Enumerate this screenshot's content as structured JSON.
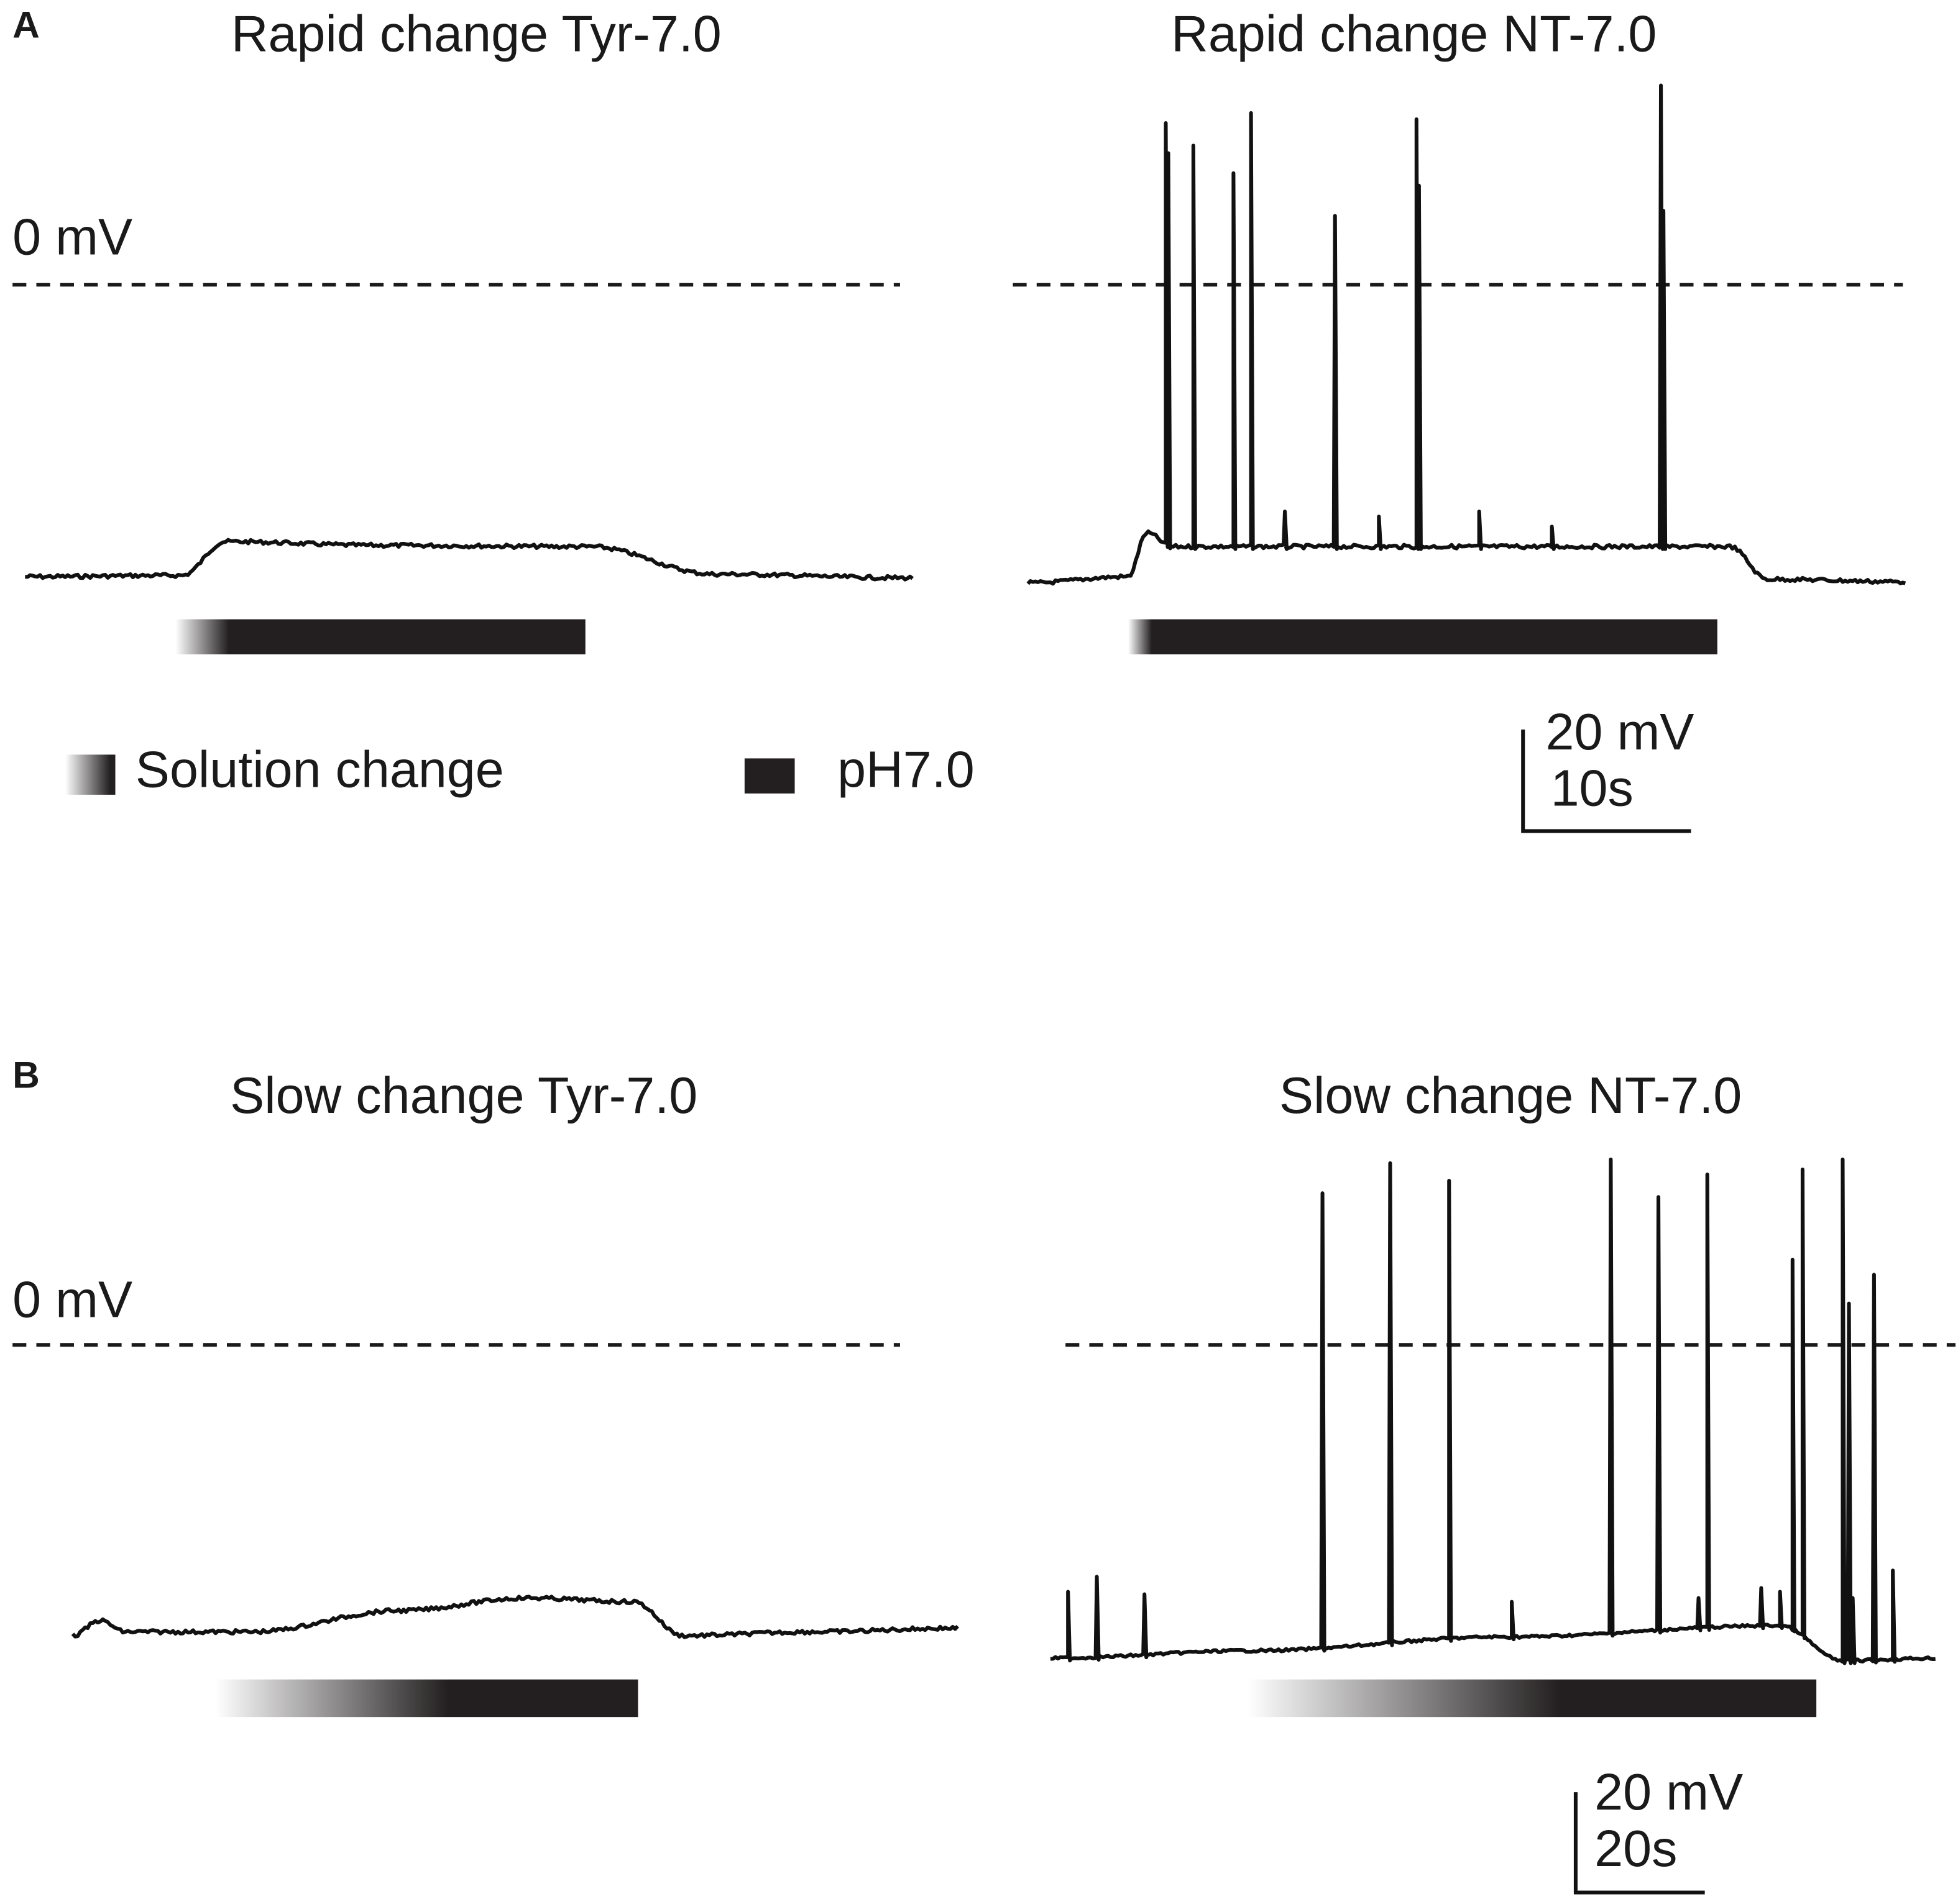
{
  "panels": [
    {
      "label": "A",
      "zero_label": "0 mV",
      "left_title": "Rapid change Tyr-7.0",
      "right_title": "Rapid change NT-7.0",
      "scale_voltage": "20 mV",
      "scale_time": "10s"
    },
    {
      "label": "B",
      "zero_label": "0 mV",
      "left_title": "Slow change Tyr-7.0",
      "right_title": "Slow change NT-7.0",
      "scale_voltage": "20 mV",
      "scale_time": "20s"
    }
  ],
  "legend": {
    "solution_change": "Solution change",
    "ph": "pH7.0"
  }
}
